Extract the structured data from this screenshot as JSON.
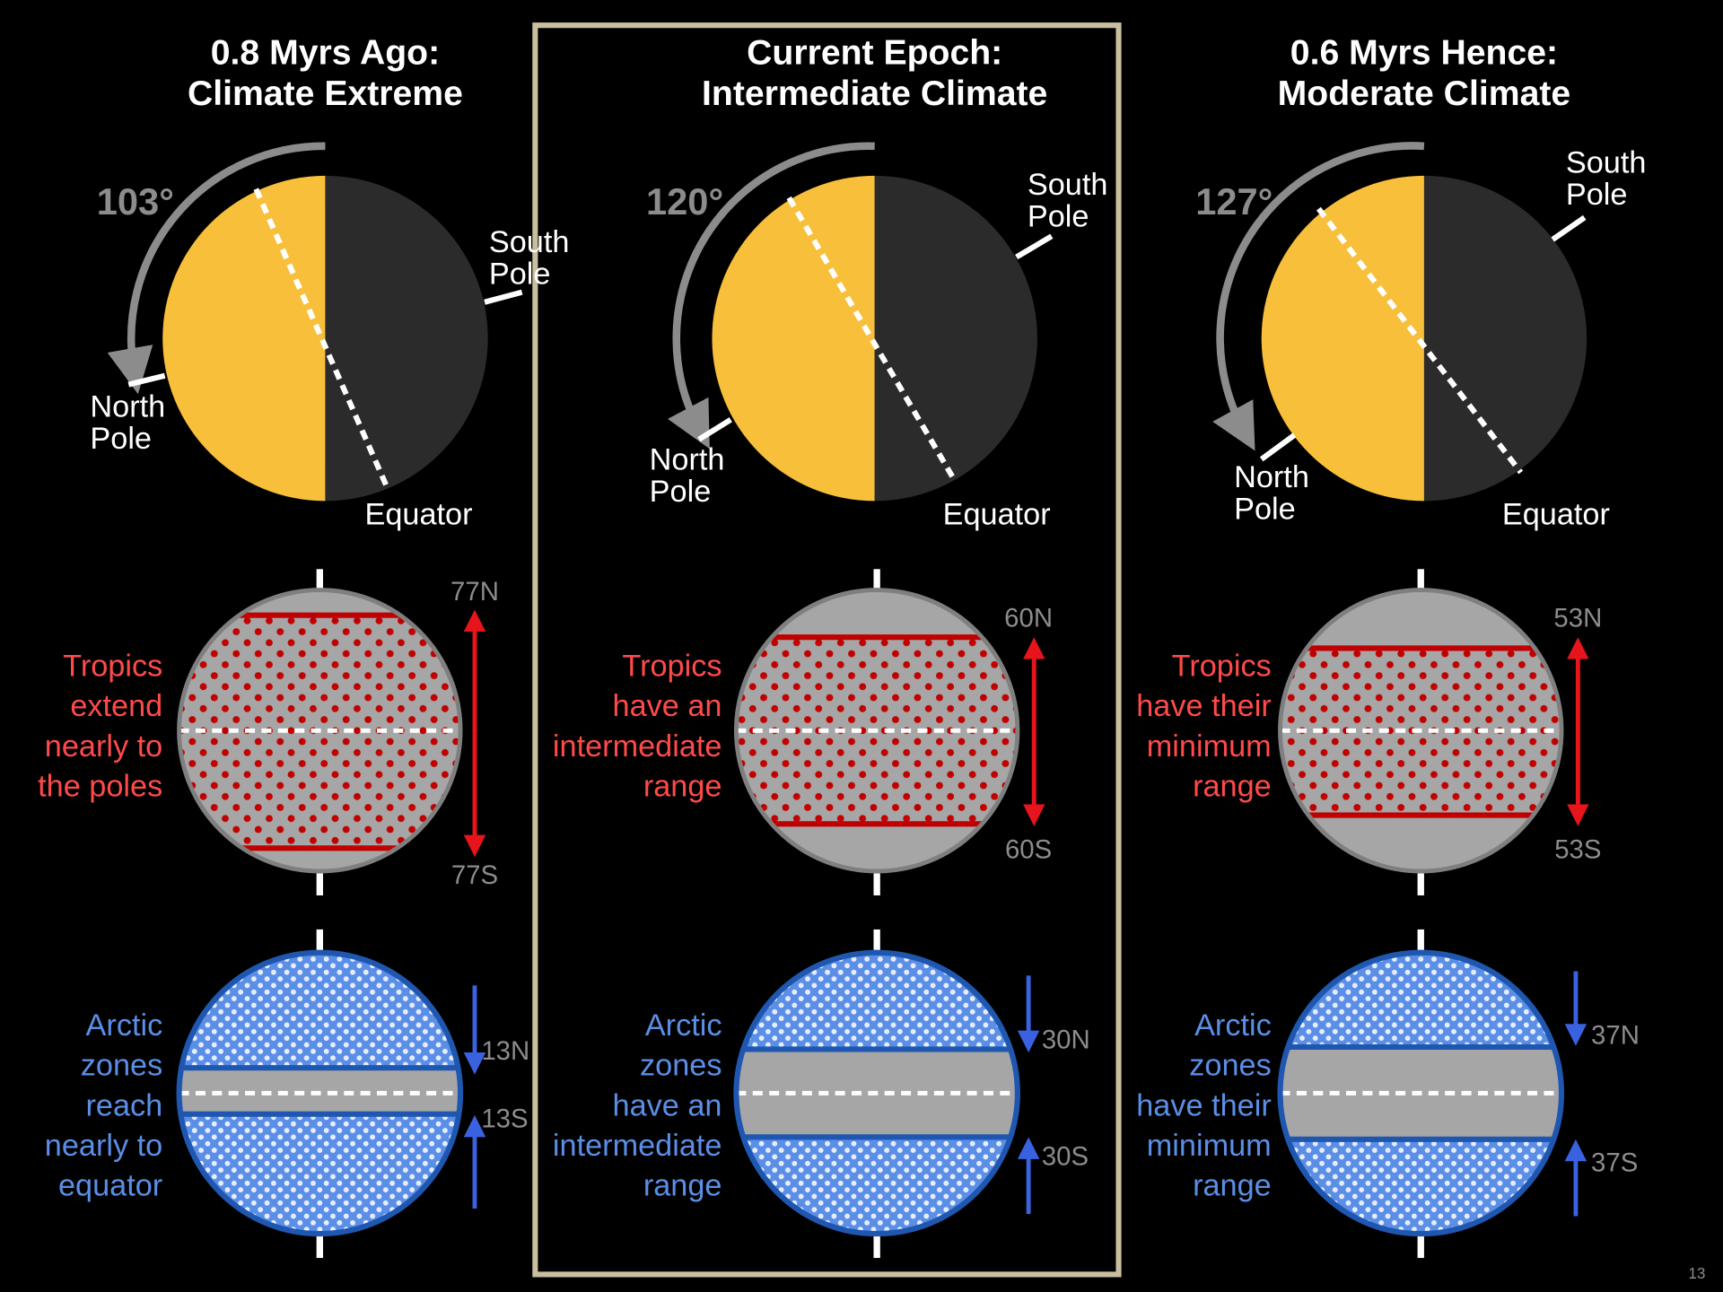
{
  "columns": [
    {
      "title": [
        "0.8 Myrs Ago:",
        "Climate Extreme"
      ],
      "angle": "103°",
      "south_pole": [
        "South",
        "Pole"
      ],
      "north_pole": [
        "North",
        "Pole"
      ],
      "equator": "Equator",
      "tropics_text": [
        "Tropics",
        "extend",
        "nearly to",
        "the poles"
      ],
      "tropics_north": "77N",
      "tropics_south": "77S",
      "arctic_text": [
        "Arctic",
        "zones",
        "reach",
        "nearly to",
        "equator"
      ],
      "arctic_north": "13N",
      "arctic_south": "13S"
    },
    {
      "title": [
        "Current Epoch:",
        "Intermediate Climate"
      ],
      "angle": "120°",
      "south_pole": [
        "South",
        "Pole"
      ],
      "north_pole": [
        "North",
        "Pole"
      ],
      "equator": "Equator",
      "tropics_text": [
        "Tropics",
        "have an",
        "intermediate",
        "range"
      ],
      "tropics_north": "60N",
      "tropics_south": "60S",
      "arctic_text": [
        "Arctic",
        "zones",
        "have an",
        "intermediate",
        "range"
      ],
      "arctic_north": "30N",
      "arctic_south": "30S"
    },
    {
      "title": [
        "0.6 Myrs Hence:",
        "Moderate Climate"
      ],
      "angle": "127°",
      "south_pole": [
        "South",
        "Pole"
      ],
      "north_pole": [
        "North",
        "Pole"
      ],
      "equator": "Equator",
      "tropics_text": [
        "Tropics",
        "have their",
        "minimum",
        "range"
      ],
      "tropics_north": "53N",
      "tropics_south": "53S",
      "arctic_text": [
        "Arctic",
        "zones",
        "have their",
        "minimum",
        "range"
      ],
      "arctic_north": "37N",
      "arctic_south": "37S"
    }
  ],
  "page_number": "13"
}
